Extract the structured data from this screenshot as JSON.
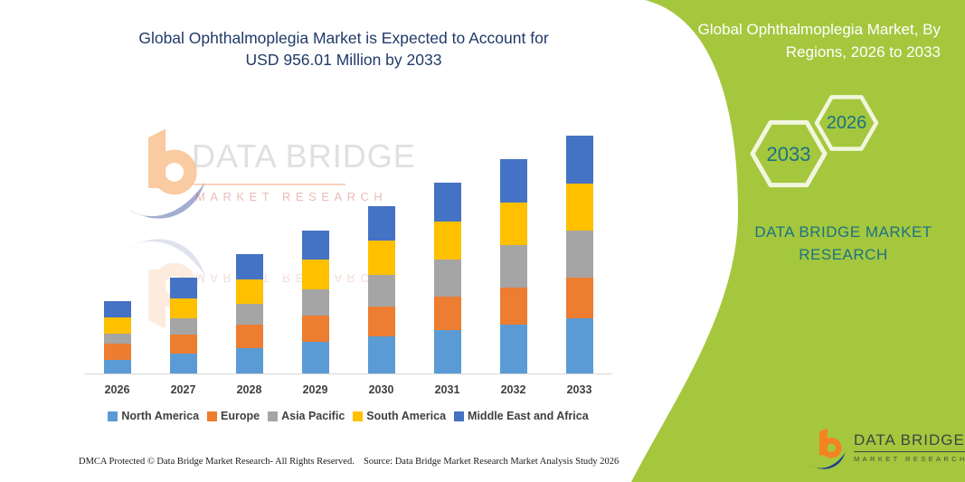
{
  "header": {
    "title_line1": "Global Ophthalmoplegia Market is Expected to Account for",
    "title_line2": "USD 956.01 Million by 2033",
    "title_color": "#203a68"
  },
  "side_panel": {
    "background_color": "#a4c73e",
    "title_line1": "Global Ophthalmoplegia Market, By",
    "title_line2": "Regions, 2026 to 2033",
    "hexagon_back_label": "2033",
    "hexagon_front_label": "2026",
    "brand_line1": "DATA BRIDGE MARKET",
    "brand_line2": "RESEARCH",
    "text_color": "#1d7283"
  },
  "watermark": {
    "line1": "DATA BRIDGE",
    "line2": "MARKET RESEARCH"
  },
  "chart_data": {
    "type": "bar",
    "stacked": true,
    "title": "Global Ophthalmoplegia Market, By Regions, 2026 to 2033",
    "unit": "USD Million (values estimated from bar heights; 2033 total = 956.01)",
    "categories": [
      "2026",
      "2027",
      "2028",
      "2029",
      "2030",
      "2031",
      "2032",
      "2033"
    ],
    "series": [
      {
        "name": "North America",
        "color": "#5B9BD5",
        "values": [
          55.6,
          79.4,
          103.1,
          126.9,
          150.7,
          174.5,
          198.2,
          222.0
        ]
      },
      {
        "name": "Europe",
        "color": "#ED7D31",
        "values": [
          63.6,
          77.7,
          91.7,
          105.8,
          119.8,
          133.9,
          147.9,
          162.0
        ]
      },
      {
        "name": "Asia Pacific",
        "color": "#A5A5A5",
        "values": [
          42.5,
          63.7,
          84.9,
          106.1,
          127.4,
          148.6,
          169.8,
          191.0
        ]
      },
      {
        "name": "South America",
        "color": "#FFC000",
        "values": [
          63.6,
          81.7,
          99.7,
          117.8,
          135.8,
          153.9,
          171.9,
          190.0
        ]
      },
      {
        "name": "Middle East and Africa",
        "color": "#4472C4",
        "values": [
          65.5,
          83.4,
          101.4,
          119.3,
          137.2,
          155.2,
          173.1,
          191.0
        ]
      }
    ],
    "totals": [
      290.8,
      385.9,
      480.8,
      575.9,
      670.9,
      766.1,
      860.9,
      956.0
    ],
    "legend_position": "bottom",
    "y_axis_visible": false,
    "axis_line_color": "#d8d8d8"
  },
  "footer": {
    "left_text": "DMCA Protected © Data Bridge Market Research-  All Rights Reserved.",
    "right_text": "Source: Data Bridge Market Research  Market Analysis Study 2026"
  },
  "logo": {
    "name": "DATA BRIDGE",
    "subtitle": "MARKET RESEARCH"
  }
}
